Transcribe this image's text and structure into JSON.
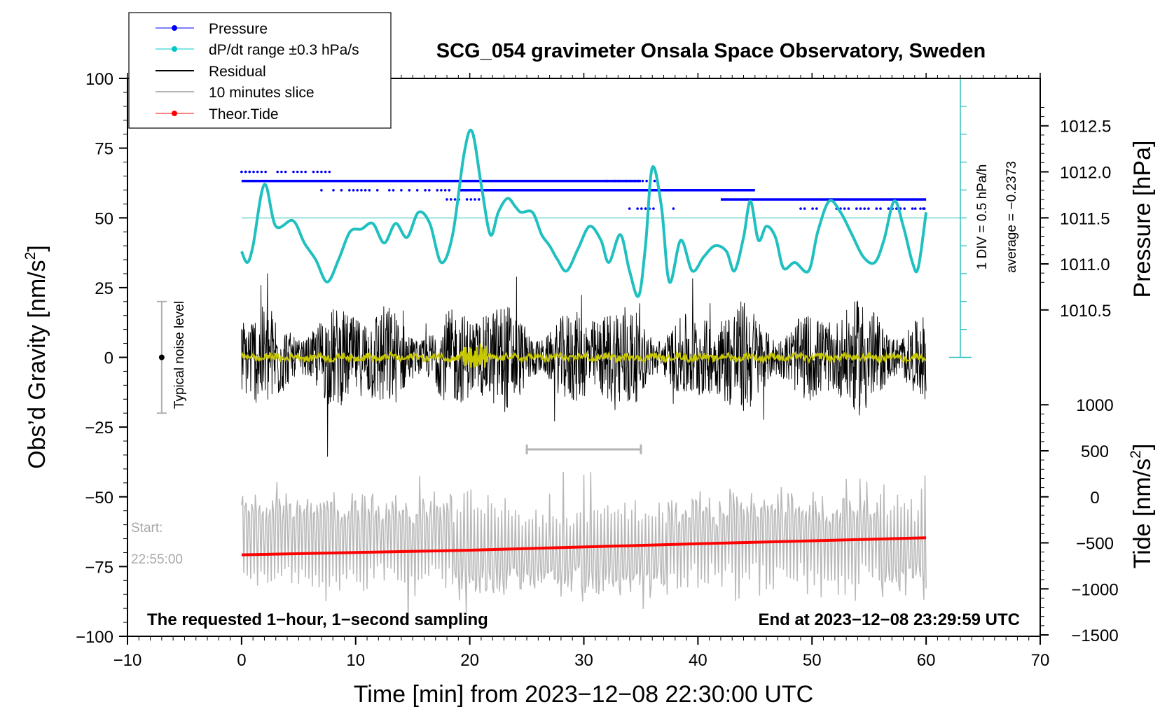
{
  "chart_data": {
    "type": "line",
    "title": "SCG_054 gravimeter Onsala Space Observatory, Sweden",
    "xlabel": "Time [min] from 2023−12−08 22:30:00 UTC",
    "ylabel_left": "Obs’d Gravity [nm/s",
    "ylabel_left_sup": "2",
    "ylabel_left_end": "]",
    "ylabel_right_top": "Pressure [hPa]",
    "ylabel_right_bottom": "Tide [nm/s",
    "ylabel_right_bottom_sup": "2",
    "ylabel_right_bottom_end": "]",
    "xlim": [
      -10,
      70
    ],
    "ylim": [
      -100,
      100
    ],
    "x_ticks": [
      -10,
      0,
      10,
      20,
      30,
      40,
      50,
      60,
      70
    ],
    "x_tick_labels": [
      "−10",
      "0",
      "10",
      "20",
      "30",
      "40",
      "50",
      "60",
      "70"
    ],
    "y_ticks": [
      -100,
      -75,
      -50,
      -25,
      0,
      25,
      50,
      75,
      100
    ],
    "y_tick_labels": [
      "−100",
      "−75",
      "−50",
      "−25",
      "0",
      "25",
      "50",
      "75",
      "100"
    ],
    "pressure_axis": {
      "ticks": [
        1010.5,
        1011.0,
        1011.5,
        1012.0,
        1012.5
      ],
      "tick_labels": [
        "1010.5",
        "1011.0",
        "1011.5",
        "1012.0",
        "1012.5"
      ],
      "gravity_at_1011_5": 50,
      "gravity_per_hpa": 33
    },
    "tide_axis": {
      "ticks": [
        -1500,
        -1000,
        -500,
        0,
        500,
        1000
      ],
      "tick_labels": [
        "−1500",
        "−1000",
        "−500",
        "0",
        "500",
        "1000"
      ],
      "gravity_at_0": -50,
      "gravity_per_unit": 0.033
    },
    "legend": [
      {
        "label": "Pressure",
        "color": "#0000ff",
        "marker": true
      },
      {
        "label": "dP/dt range ±0.3 hPa/s",
        "color": "#00c8c8",
        "marker": true
      },
      {
        "label": "Residual",
        "color": "#000000",
        "marker": false
      },
      {
        "label": "10 minutes slice",
        "color": "#b4b4b4",
        "marker": false
      },
      {
        "label": "Theor.Tide",
        "color": "#ff0000",
        "marker": true
      }
    ],
    "series": [
      {
        "name": "dP/dt",
        "color": "#20c0c0",
        "x": [
          0,
          0.5,
          1,
          2,
          3,
          4.5,
          5.5,
          6.5,
          7.5,
          8.5,
          9.5,
          10.5,
          11.5,
          12.5,
          13.5,
          14.5,
          15.5,
          16.5,
          17.5,
          18.5,
          19.5,
          20.2,
          21,
          21.8,
          22.5,
          23.3,
          24,
          24.5,
          25.5,
          26.3,
          27,
          27.7,
          28.5,
          29.5,
          30.5,
          31.5,
          32.2,
          33.2,
          34,
          34.8,
          35.4,
          36,
          36.8,
          37.5,
          38.5,
          39.5,
          40.5,
          41.5,
          42.5,
          43.2,
          44,
          44.6,
          45.3,
          46,
          46.8,
          47.5,
          48.5,
          49.7,
          50.5,
          51.5,
          52.5,
          53.5,
          54.5,
          55.5,
          56.3,
          57.2,
          58,
          58.8,
          59.3,
          60
        ],
        "y": [
          38,
          34,
          40,
          62,
          47,
          49,
          41,
          35,
          27,
          35,
          45,
          46,
          48,
          41,
          48,
          43,
          52,
          48,
          34,
          44,
          73,
          81,
          62,
          44,
          52,
          57,
          54,
          52,
          52,
          44,
          40,
          35,
          31,
          39,
          47,
          42,
          34,
          44,
          31,
          22,
          40,
          68,
          54,
          27,
          42,
          31,
          36,
          40,
          38,
          31,
          43,
          56,
          42,
          47,
          43,
          32,
          34,
          31,
          45,
          56,
          52,
          44,
          36,
          34,
          42,
          56,
          47,
          34,
          32,
          52
        ]
      },
      {
        "name": "Pressure",
        "color": "#0000ff",
        "main_levels": [
          {
            "value": 1011.9,
            "x_start": 0,
            "x_end": 35
          },
          {
            "value": 1011.8,
            "x_start": 19,
            "x_end": 45
          },
          {
            "value": 1011.7,
            "x_start": 42,
            "x_end": 60
          }
        ]
      },
      {
        "name": "Theor.Tide",
        "color": "#ff0000",
        "x": [
          0,
          20,
          40,
          60
        ],
        "tide": [
          -630,
          -580,
          -510,
          -445
        ]
      }
    ],
    "ten_min_slice_bar": {
      "x_start": 25,
      "x_end": 35,
      "y": -33
    },
    "pressure_scale": {
      "label1": "1 DIV = 0.5 hPa/h",
      "label2": "average = −0.2373",
      "x": 63,
      "y_min": 0,
      "y_max": 100
    },
    "noise_level": {
      "label": "Typical noise level",
      "x": -7,
      "y_min": -20,
      "y_max": 20
    },
    "start_label": "Start:",
    "start_time": "22:55:00",
    "note_left": "The requested 1−hour, 1−second sampling",
    "note_right": "End at 2023−12−08 23:29:59 UTC"
  }
}
